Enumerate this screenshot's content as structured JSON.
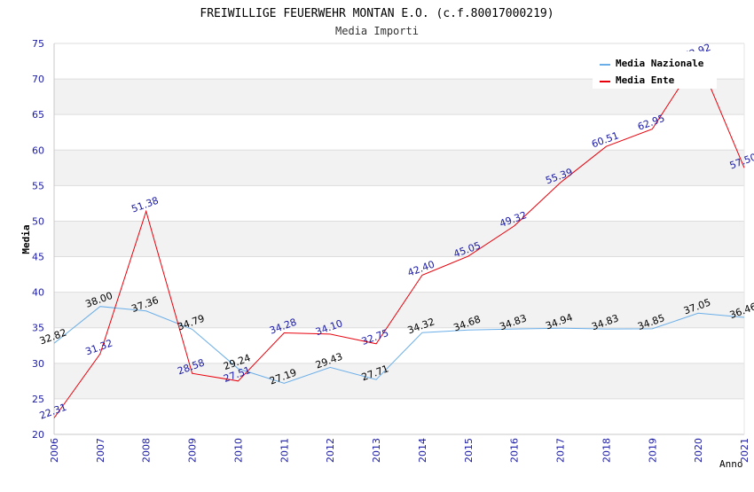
{
  "chart_data": {
    "type": "line",
    "title": "FREIWILLIGE FEUERWEHR MONTAN E.O. (c.f.80017000219)",
    "subtitle": "Media Importi",
    "xlabel": "Anno",
    "ylabel": "Media",
    "ylim": [
      20,
      75
    ],
    "yticks": [
      "20",
      "25",
      "30",
      "35",
      "40",
      "45",
      "50",
      "55",
      "60",
      "65",
      "70",
      "75"
    ],
    "categories": [
      "2006",
      "2007",
      "2008",
      "2009",
      "2010",
      "2011",
      "2012",
      "2013",
      "2014",
      "2015",
      "2016",
      "2017",
      "2018",
      "2019",
      "2020",
      "2021"
    ],
    "grid": true,
    "legend_position": "top-right",
    "series": [
      {
        "name": "Media Nazionale",
        "color": "#6aaee8",
        "label_color": "#000000",
        "values": [
          32.82,
          38.0,
          37.36,
          34.79,
          29.24,
          27.19,
          29.43,
          27.71,
          34.32,
          34.68,
          34.83,
          34.94,
          34.83,
          34.85,
          37.05,
          36.46
        ],
        "labels": [
          "32.82",
          "38.00",
          "37.36",
          "34.79",
          "29.24",
          "27.19",
          "29.43",
          "27.71",
          "34.32",
          "34.68",
          "34.83",
          "34.94",
          "34.83",
          "34.85",
          "37.05",
          "36.46"
        ]
      },
      {
        "name": "Media Ente",
        "color": "#e8000b",
        "label_color": "#1a1aa6",
        "values": [
          22.31,
          31.32,
          51.38,
          28.58,
          27.51,
          34.28,
          34.1,
          32.75,
          42.4,
          45.05,
          49.32,
          55.39,
          60.51,
          62.95,
          72.92,
          57.5
        ],
        "labels": [
          "22.31",
          "31.32",
          "51.38",
          "28.58",
          "27.51",
          "34.28",
          "34.10",
          "32.75",
          "42.40",
          "45.05",
          "49.32",
          "55.39",
          "60.51",
          "62.95",
          "72.92",
          "57.50"
        ]
      }
    ]
  }
}
